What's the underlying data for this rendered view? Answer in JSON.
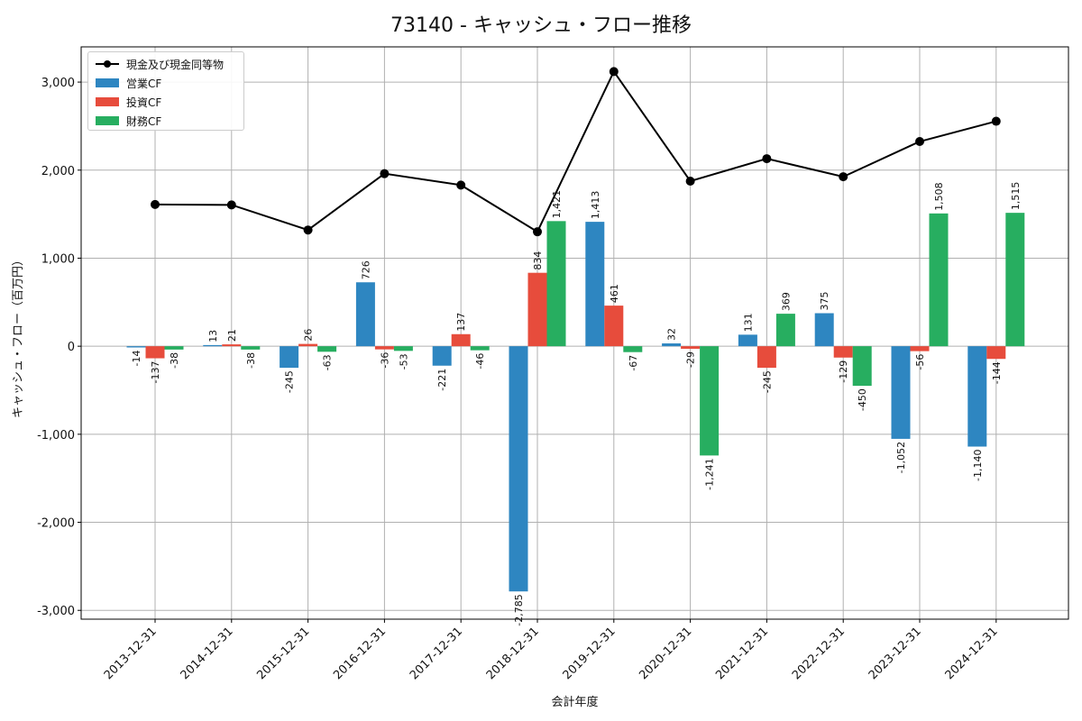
{
  "chart_data": {
    "type": "bar",
    "title": "73140 - キャッシュ・フロー推移",
    "xlabel": "会計年度",
    "ylabel": "キャッシュ・フロー（百万円）",
    "categories": [
      "2013-12-31",
      "2014-12-31",
      "2015-12-31",
      "2016-12-31",
      "2017-12-31",
      "2018-12-31",
      "2019-12-31",
      "2020-12-31",
      "2021-12-31",
      "2022-12-31",
      "2023-12-31",
      "2024-12-31"
    ],
    "ylim": [
      -3100,
      3400
    ],
    "yticks": [
      -3000,
      -2000,
      -1000,
      0,
      1000,
      2000,
      3000
    ],
    "ytick_labels": [
      "-3,000",
      "-2,000",
      "-1,000",
      "0",
      "1,000",
      "2,000",
      "3,000"
    ],
    "grid": true,
    "legend_position": "top-left",
    "series": [
      {
        "name": "営業CF",
        "kind": "bar",
        "color": "#2e86c1",
        "values": [
          -14,
          13,
          -245,
          726,
          -221,
          -2785,
          1413,
          32,
          131,
          375,
          -1052,
          -1140
        ],
        "labels": [
          "-14",
          "13",
          "-245",
          "726",
          "-221",
          "-2,785",
          "1,413",
          "32",
          "131",
          "375",
          "-1,052",
          "-1,140"
        ]
      },
      {
        "name": "投資CF",
        "kind": "bar",
        "color": "#e74c3c",
        "values": [
          -137,
          21,
          26,
          -36,
          137,
          834,
          461,
          -29,
          -245,
          -129,
          -56,
          -144
        ],
        "labels": [
          "-137",
          "21",
          "26",
          "-36",
          "137",
          "834",
          "461",
          "-29",
          "-245",
          "-129",
          "-56",
          "-144"
        ]
      },
      {
        "name": "財務CF",
        "kind": "bar",
        "color": "#27ae60",
        "values": [
          -38,
          -38,
          -63,
          -53,
          -46,
          1421,
          -67,
          -1241,
          369,
          -450,
          1508,
          1515
        ],
        "labels": [
          "-38",
          "-38",
          "-63",
          "-53",
          "-46",
          "1,421",
          "-67",
          "-1,241",
          "369",
          "-450",
          "1,508",
          "1,515"
        ]
      },
      {
        "name": "現金及び現金同等物",
        "kind": "line",
        "color": "#000000",
        "values": [
          1610,
          1605,
          1320,
          1960,
          1830,
          1300,
          3120,
          1875,
          2130,
          1925,
          2325,
          2555
        ]
      }
    ]
  }
}
